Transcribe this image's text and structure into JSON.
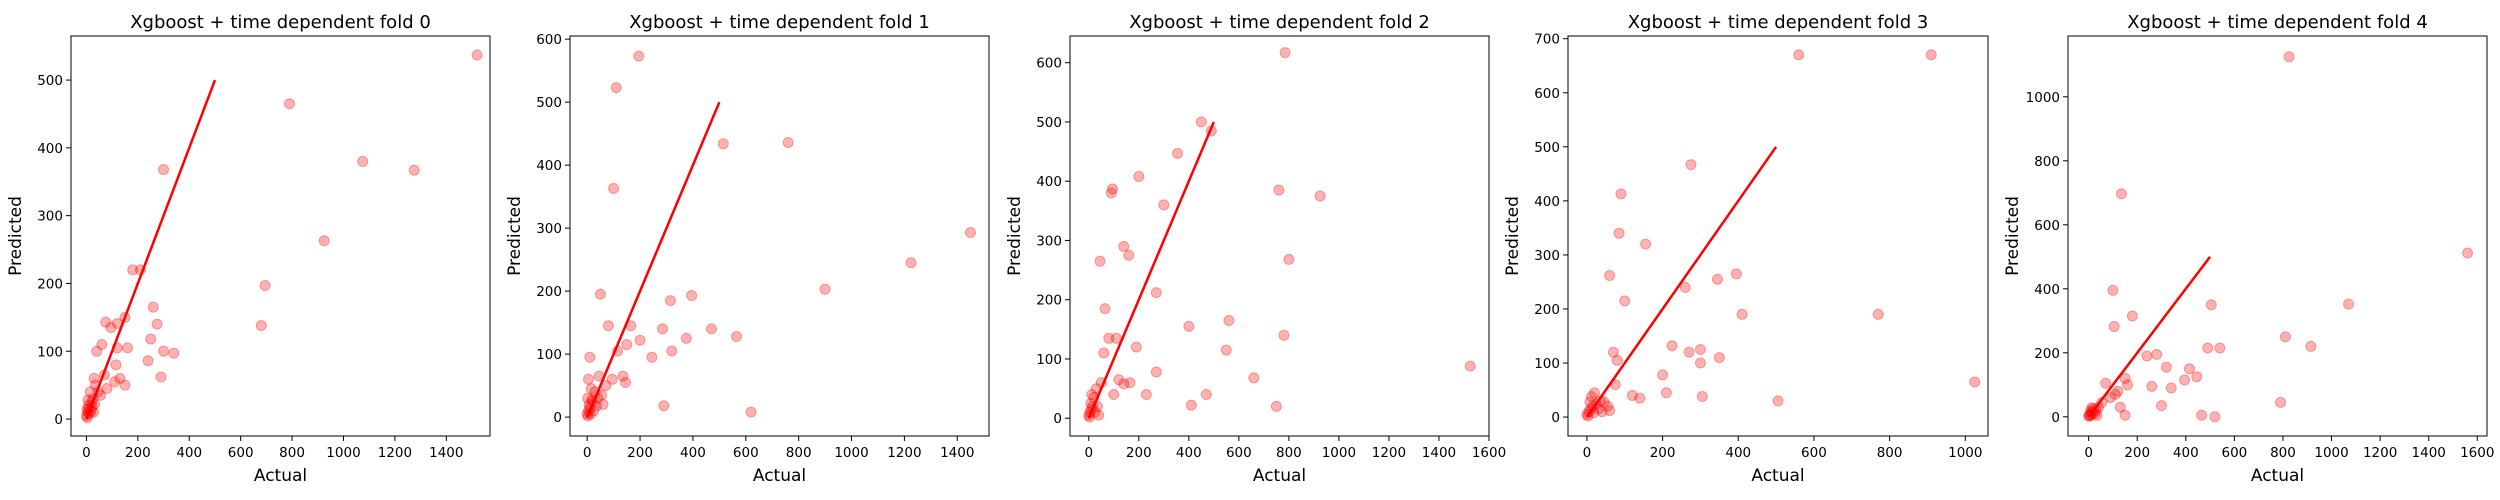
{
  "chart_data": [
    {
      "type": "scatter",
      "title": "Xgboost + time dependent fold 0",
      "xlabel": "Actual",
      "ylabel": "Predicted",
      "xlim": [
        -60,
        1570
      ],
      "ylim": [
        -25,
        565
      ],
      "xticks": [
        0,
        200,
        400,
        600,
        800,
        1000,
        1200,
        1400
      ],
      "yticks": [
        0,
        100,
        200,
        300,
        400,
        500
      ],
      "reference_line": [
        [
          0,
          0
        ],
        [
          500,
          500
        ]
      ],
      "points_color": "#ff0000",
      "line_color": "#ff0000",
      "points": [
        [
          1520,
          537
        ],
        [
          790,
          465
        ],
        [
          1075,
          380
        ],
        [
          1275,
          367
        ],
        [
          300,
          368
        ],
        [
          925,
          263
        ],
        [
          695,
          197
        ],
        [
          680,
          138
        ],
        [
          260,
          165
        ],
        [
          210,
          220
        ],
        [
          180,
          220
        ],
        [
          275,
          140
        ],
        [
          300,
          100
        ],
        [
          340,
          97
        ],
        [
          290,
          62
        ],
        [
          250,
          118
        ],
        [
          240,
          86
        ],
        [
          150,
          150
        ],
        [
          120,
          141
        ],
        [
          95,
          135
        ],
        [
          120,
          105
        ],
        [
          75,
          143
        ],
        [
          60,
          110
        ],
        [
          40,
          100
        ],
        [
          30,
          60
        ],
        [
          70,
          65
        ],
        [
          110,
          55
        ],
        [
          130,
          60
        ],
        [
          150,
          50
        ],
        [
          160,
          105
        ],
        [
          115,
          80
        ],
        [
          80,
          45
        ],
        [
          55,
          35
        ],
        [
          45,
          40
        ],
        [
          35,
          50
        ],
        [
          25,
          30
        ],
        [
          20,
          25
        ],
        [
          15,
          40
        ],
        [
          10,
          15
        ],
        [
          5,
          10
        ],
        [
          0,
          5
        ],
        [
          3,
          2
        ],
        [
          8,
          20
        ],
        [
          12,
          8
        ],
        [
          18,
          12
        ],
        [
          22,
          18
        ],
        [
          28,
          10
        ],
        [
          32,
          22
        ],
        [
          6,
          28
        ],
        [
          2,
          14
        ]
      ]
    },
    {
      "type": "scatter",
      "title": "Xgboost + time dependent fold 1",
      "xlabel": "Actual",
      "ylabel": "Predicted",
      "xlim": [
        -65,
        1520
      ],
      "ylim": [
        -30,
        605
      ],
      "xticks": [
        0,
        200,
        400,
        600,
        800,
        1000,
        1200,
        1400
      ],
      "yticks": [
        0,
        100,
        200,
        300,
        400,
        500,
        600
      ],
      "reference_line": [
        [
          0,
          0
        ],
        [
          500,
          500
        ]
      ],
      "points_color": "#ff0000",
      "line_color": "#ff0000",
      "points": [
        [
          195,
          573
        ],
        [
          110,
          523
        ],
        [
          515,
          434
        ],
        [
          760,
          436
        ],
        [
          100,
          363
        ],
        [
          1450,
          293
        ],
        [
          1225,
          245
        ],
        [
          900,
          203
        ],
        [
          50,
          195
        ],
        [
          395,
          193
        ],
        [
          315,
          185
        ],
        [
          470,
          140
        ],
        [
          565,
          128
        ],
        [
          375,
          125
        ],
        [
          285,
          140
        ],
        [
          320,
          105
        ],
        [
          245,
          95
        ],
        [
          290,
          18
        ],
        [
          620,
          8
        ],
        [
          165,
          145
        ],
        [
          200,
          122
        ],
        [
          80,
          145
        ],
        [
          150,
          115
        ],
        [
          115,
          105
        ],
        [
          135,
          65
        ],
        [
          145,
          55
        ],
        [
          95,
          60
        ],
        [
          70,
          50
        ],
        [
          45,
          65
        ],
        [
          30,
          40
        ],
        [
          55,
          35
        ],
        [
          10,
          95
        ],
        [
          5,
          60
        ],
        [
          20,
          25
        ],
        [
          15,
          45
        ],
        [
          10,
          15
        ],
        [
          5,
          10
        ],
        [
          0,
          5
        ],
        [
          3,
          2
        ],
        [
          8,
          20
        ],
        [
          25,
          10
        ],
        [
          35,
          18
        ],
        [
          40,
          30
        ],
        [
          60,
          20
        ],
        [
          2,
          30
        ],
        [
          12,
          5
        ],
        [
          18,
          28
        ]
      ]
    },
    {
      "type": "scatter",
      "title": "Xgboost + time dependent fold 2",
      "xlabel": "Actual",
      "ylabel": "Predicted",
      "xlim": [
        -75,
        1600
      ],
      "ylim": [
        -30,
        645
      ],
      "xticks": [
        0,
        200,
        400,
        600,
        800,
        1000,
        1200,
        1400,
        1600
      ],
      "yticks": [
        0,
        100,
        200,
        300,
        400,
        500,
        600
      ],
      "reference_line": [
        [
          0,
          0
        ],
        [
          500,
          500
        ]
      ],
      "points_color": "#ff0000",
      "line_color": "#ff0000",
      "points": [
        [
          785,
          617
        ],
        [
          450,
          500
        ],
        [
          490,
          485
        ],
        [
          355,
          447
        ],
        [
          200,
          408
        ],
        [
          95,
          387
        ],
        [
          90,
          380
        ],
        [
          300,
          360
        ],
        [
          760,
          385
        ],
        [
          925,
          375
        ],
        [
          140,
          290
        ],
        [
          160,
          275
        ],
        [
          45,
          265
        ],
        [
          800,
          268
        ],
        [
          270,
          212
        ],
        [
          560,
          165
        ],
        [
          400,
          155
        ],
        [
          550,
          115
        ],
        [
          190,
          120
        ],
        [
          780,
          140
        ],
        [
          65,
          185
        ],
        [
          110,
          135
        ],
        [
          80,
          135
        ],
        [
          120,
          65
        ],
        [
          140,
          58
        ],
        [
          60,
          110
        ],
        [
          50,
          60
        ],
        [
          660,
          68
        ],
        [
          750,
          20
        ],
        [
          410,
          22
        ],
        [
          470,
          40
        ],
        [
          270,
          78
        ],
        [
          1525,
          88
        ],
        [
          230,
          40
        ],
        [
          165,
          60
        ],
        [
          100,
          40
        ],
        [
          30,
          50
        ],
        [
          20,
          35
        ],
        [
          15,
          20
        ],
        [
          10,
          15
        ],
        [
          5,
          10
        ],
        [
          0,
          5
        ],
        [
          3,
          2
        ],
        [
          8,
          25
        ],
        [
          25,
          10
        ],
        [
          35,
          20
        ],
        [
          40,
          5
        ],
        [
          12,
          40
        ]
      ]
    },
    {
      "type": "scatter",
      "title": "Xgboost + time dependent fold 3",
      "xlabel": "Actual",
      "ylabel": "Predicted",
      "xlim": [
        -50,
        1060
      ],
      "ylim": [
        -35,
        705
      ],
      "xticks": [
        0,
        200,
        400,
        600,
        800,
        1000
      ],
      "yticks": [
        0,
        100,
        200,
        300,
        400,
        500,
        600,
        700
      ],
      "reference_line": [
        [
          0,
          0
        ],
        [
          500,
          500
        ]
      ],
      "points_color": "#ff0000",
      "line_color": "#ff0000",
      "points": [
        [
          560,
          670
        ],
        [
          910,
          670
        ],
        [
          275,
          467
        ],
        [
          90,
          413
        ],
        [
          85,
          340
        ],
        [
          155,
          320
        ],
        [
          60,
          262
        ],
        [
          100,
          215
        ],
        [
          395,
          265
        ],
        [
          345,
          255
        ],
        [
          260,
          240
        ],
        [
          770,
          190
        ],
        [
          410,
          190
        ],
        [
          225,
          132
        ],
        [
          270,
          120
        ],
        [
          300,
          125
        ],
        [
          300,
          100
        ],
        [
          350,
          110
        ],
        [
          210,
          45
        ],
        [
          200,
          78
        ],
        [
          80,
          105
        ],
        [
          70,
          120
        ],
        [
          75,
          60
        ],
        [
          120,
          40
        ],
        [
          140,
          35
        ],
        [
          305,
          38
        ],
        [
          505,
          30
        ],
        [
          1025,
          65
        ],
        [
          20,
          45
        ],
        [
          35,
          30
        ],
        [
          55,
          20
        ],
        [
          40,
          10
        ],
        [
          30,
          15
        ],
        [
          25,
          25
        ],
        [
          15,
          20
        ],
        [
          10,
          15
        ],
        [
          5,
          10
        ],
        [
          0,
          5
        ],
        [
          3,
          2
        ],
        [
          8,
          28
        ],
        [
          12,
          38
        ],
        [
          18,
          8
        ],
        [
          45,
          28
        ],
        [
          60,
          12
        ]
      ]
    },
    {
      "type": "scatter",
      "title": "Xgboost + time dependent fold 4",
      "xlabel": "Actual",
      "ylabel": "Predicted",
      "xlim": [
        -85,
        1640
      ],
      "ylim": [
        -60,
        1190
      ],
      "xticks": [
        0,
        200,
        400,
        600,
        800,
        1000,
        1200,
        1400,
        1600
      ],
      "yticks": [
        0,
        200,
        400,
        600,
        800,
        1000
      ],
      "reference_line": [
        [
          0,
          0
        ],
        [
          500,
          500
        ]
      ],
      "points_color": "#ff0000",
      "line_color": "#ff0000",
      "points": [
        [
          825,
          1125
        ],
        [
          135,
          697
        ],
        [
          1560,
          512
        ],
        [
          100,
          395
        ],
        [
          180,
          315
        ],
        [
          1070,
          352
        ],
        [
          505,
          350
        ],
        [
          105,
          282
        ],
        [
          810,
          250
        ],
        [
          915,
          220
        ],
        [
          540,
          215
        ],
        [
          490,
          215
        ],
        [
          280,
          195
        ],
        [
          240,
          190
        ],
        [
          320,
          155
        ],
        [
          415,
          150
        ],
        [
          445,
          125
        ],
        [
          395,
          115
        ],
        [
          340,
          90
        ],
        [
          260,
          95
        ],
        [
          150,
          120
        ],
        [
          160,
          100
        ],
        [
          120,
          80
        ],
        [
          70,
          105
        ],
        [
          90,
          60
        ],
        [
          110,
          70
        ],
        [
          55,
          45
        ],
        [
          130,
          30
        ],
        [
          150,
          5
        ],
        [
          300,
          35
        ],
        [
          465,
          5
        ],
        [
          520,
          0
        ],
        [
          790,
          45
        ],
        [
          40,
          30
        ],
        [
          30,
          20
        ],
        [
          25,
          10
        ],
        [
          20,
          25
        ],
        [
          15,
          15
        ],
        [
          10,
          5
        ],
        [
          5,
          8
        ],
        [
          0,
          3
        ],
        [
          3,
          2
        ],
        [
          8,
          18
        ],
        [
          12,
          28
        ],
        [
          35,
          5
        ]
      ]
    }
  ]
}
